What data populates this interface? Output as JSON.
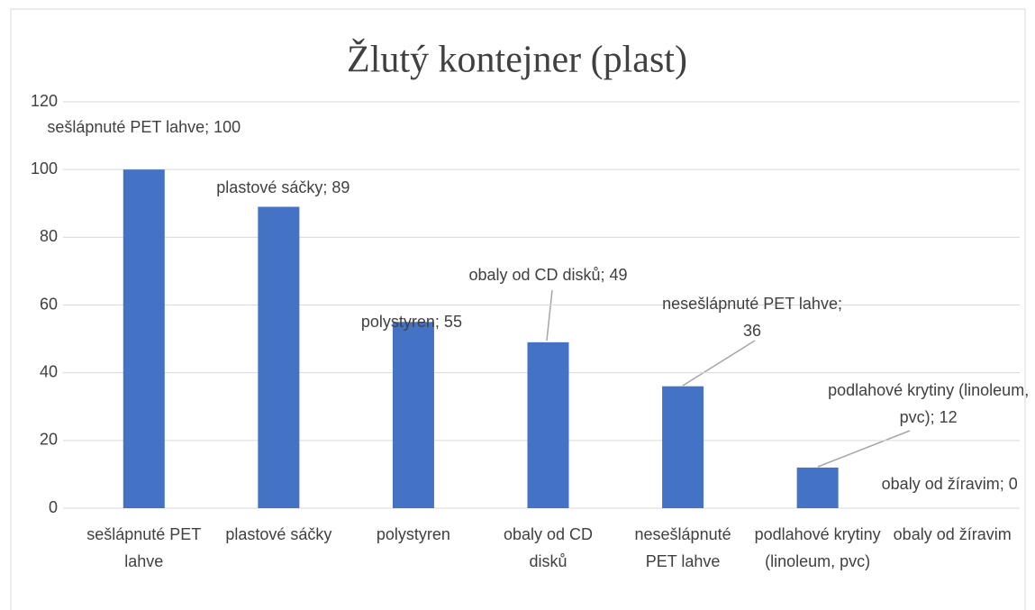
{
  "chart_data": {
    "type": "bar",
    "title": "Žlutý kontejner (plast)",
    "categories": [
      "sešlápnuté PET lahve",
      "plastové sáčky",
      "polystyren",
      "obaly od CD disků",
      "nesešlápnuté PET lahve",
      "podlahové krytiny (linoleum, pvc)",
      "obaly od žíravim"
    ],
    "values": [
      100,
      89,
      55,
      49,
      36,
      12,
      0
    ],
    "value_labels": [
      "sešlápnuté PET lahve; 100",
      "plastové sáčky; 89",
      "polystyren; 55",
      "obaly od CD disků; 49",
      "nesešlápnuté PET lahve; 36",
      "podlahové krytiny (linoleum, pvc); 12",
      "obaly od žíravim; 0"
    ],
    "color": "#4472c4",
    "ylim": [
      0,
      120
    ],
    "yticks": [
      0,
      20,
      40,
      60,
      80,
      100,
      120
    ],
    "grid": true
  }
}
